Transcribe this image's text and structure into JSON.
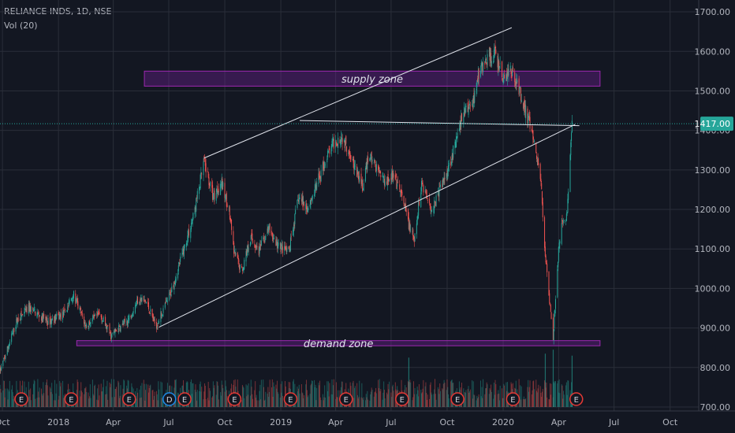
{
  "header": {
    "symbol_line": "RELIANCE INDS, 1D, NSE",
    "volume_line": "Vol (20)"
  },
  "colors": {
    "background": "#131722",
    "grid": "#2a2e39",
    "up": "#26a69a",
    "down": "#ef5350",
    "zone_border": "#9c27b0",
    "zone_fill": "#7b1fa2",
    "trendline": "#e0e3eb",
    "price_line": "#26a69a",
    "axis_text": "#b2b5be",
    "price_tag_bg": "#26a69a",
    "marker_red": "#e53935",
    "marker_blue": "#1e88e5"
  },
  "chart_data": {
    "type": "candlestick",
    "title": "RELIANCE INDS, 1D, NSE",
    "indicator": "Vol (20)",
    "x_ticks": [
      "Oct",
      "2018",
      "Apr",
      "Jul",
      "Oct",
      "2019",
      "Apr",
      "Jul",
      "Oct",
      "2020",
      "Apr",
      "Jul",
      "Oct"
    ],
    "x_tick_dates": [
      "2017-10-01",
      "2018-01-01",
      "2018-04-01",
      "2018-07-01",
      "2018-10-01",
      "2019-01-01",
      "2019-04-01",
      "2019-07-01",
      "2019-10-01",
      "2020-01-01",
      "2020-04-01",
      "2020-07-01",
      "2020-10-01"
    ],
    "y_ticks": [
      "1700.00",
      "1600.00",
      "1500.00",
      "1400.00",
      "1300.00",
      "1200.00",
      "1100.00",
      "1000.00",
      "900.00",
      "800.00",
      "700.00"
    ],
    "y_range": [
      690,
      1730
    ],
    "x_range": [
      "2017-09-27",
      "2020-11-17"
    ],
    "current_price": {
      "value": 1417,
      "label": "1417.00"
    },
    "price_path": [
      [
        "2017-09-27",
        790
      ],
      [
        "2017-10-25",
        920
      ],
      [
        "2017-11-15",
        950
      ],
      [
        "2017-12-15",
        915
      ],
      [
        "2018-01-10",
        935
      ],
      [
        "2018-01-25",
        985
      ],
      [
        "2018-02-15",
        905
      ],
      [
        "2018-03-10",
        935
      ],
      [
        "2018-03-28",
        880
      ],
      [
        "2018-04-25",
        920
      ],
      [
        "2018-05-12",
        975
      ],
      [
        "2018-05-25",
        965
      ],
      [
        "2018-06-10",
        905
      ],
      [
        "2018-07-01",
        975
      ],
      [
        "2018-07-20",
        1070
      ],
      [
        "2018-08-10",
        1180
      ],
      [
        "2018-08-28",
        1320
      ],
      [
        "2018-09-12",
        1230
      ],
      [
        "2018-09-25",
        1270
      ],
      [
        "2018-10-08",
        1200
      ],
      [
        "2018-10-16",
        1090
      ],
      [
        "2018-10-29",
        1045
      ],
      [
        "2018-11-12",
        1130
      ],
      [
        "2018-11-26",
        1095
      ],
      [
        "2018-12-12",
        1150
      ],
      [
        "2018-12-26",
        1110
      ],
      [
        "2019-01-14",
        1090
      ],
      [
        "2019-01-30",
        1230
      ],
      [
        "2019-02-14",
        1205
      ],
      [
        "2019-02-25",
        1245
      ],
      [
        "2019-03-14",
        1320
      ],
      [
        "2019-03-27",
        1365
      ],
      [
        "2019-04-10",
        1385
      ],
      [
        "2019-04-25",
        1345
      ],
      [
        "2019-05-03",
        1300
      ],
      [
        "2019-05-16",
        1255
      ],
      [
        "2019-05-25",
        1340
      ],
      [
        "2019-06-08",
        1305
      ],
      [
        "2019-06-20",
        1275
      ],
      [
        "2019-07-03",
        1285
      ],
      [
        "2019-07-16",
        1245
      ],
      [
        "2019-07-28",
        1175
      ],
      [
        "2019-08-08",
        1115
      ],
      [
        "2019-08-20",
        1270
      ],
      [
        "2019-09-06",
        1200
      ],
      [
        "2019-09-16",
        1240
      ],
      [
        "2019-09-27",
        1280
      ],
      [
        "2019-10-14",
        1360
      ],
      [
        "2019-10-28",
        1445
      ],
      [
        "2019-11-12",
        1470
      ],
      [
        "2019-11-22",
        1545
      ],
      [
        "2019-12-05",
        1580
      ],
      [
        "2019-12-18",
        1595
      ],
      [
        "2020-01-01",
        1530
      ],
      [
        "2020-01-13",
        1555
      ],
      [
        "2020-01-26",
        1510
      ],
      [
        "2020-02-05",
        1460
      ],
      [
        "2020-02-18",
        1385
      ],
      [
        "2020-03-02",
        1290
      ],
      [
        "2020-03-09",
        1110
      ],
      [
        "2020-03-16",
        990
      ],
      [
        "2020-03-23",
        880
      ],
      [
        "2020-03-31",
        1080
      ],
      [
        "2020-04-07",
        1170
      ],
      [
        "2020-04-15",
        1190
      ],
      [
        "2020-04-23",
        1415
      ]
    ],
    "volume_spikes": [
      [
        "2019-07-30",
        825
      ],
      [
        "2020-03-10",
        835
      ],
      [
        "2020-03-23",
        845
      ],
      [
        "2020-04-23",
        830
      ]
    ],
    "event_markers": [
      {
        "date": "2017-11-01",
        "label": "E",
        "kind": "earnings"
      },
      {
        "date": "2018-01-22",
        "label": "E",
        "kind": "earnings"
      },
      {
        "date": "2018-04-27",
        "label": "E",
        "kind": "earnings"
      },
      {
        "date": "2018-07-02",
        "label": "D",
        "kind": "dividend"
      },
      {
        "date": "2018-07-27",
        "label": "E",
        "kind": "earnings"
      },
      {
        "date": "2018-10-17",
        "label": "E",
        "kind": "earnings"
      },
      {
        "date": "2019-01-17",
        "label": "E",
        "kind": "earnings"
      },
      {
        "date": "2019-04-18",
        "label": "E",
        "kind": "earnings"
      },
      {
        "date": "2019-07-19",
        "label": "E",
        "kind": "earnings"
      },
      {
        "date": "2019-10-18",
        "label": "E",
        "kind": "earnings"
      },
      {
        "date": "2020-01-17",
        "label": "E",
        "kind": "earnings"
      },
      {
        "date": "2020-04-30",
        "label": "E",
        "kind": "earnings"
      }
    ],
    "zones": [
      {
        "name": "supply zone",
        "from": "2018-05-22",
        "to": "2020-06-08",
        "low": 1512,
        "high": 1550
      },
      {
        "name": "demand zone",
        "from": "2018-01-31",
        "to": "2020-06-08",
        "low": 855,
        "high": 868
      }
    ],
    "trendlines": [
      {
        "from": [
          "2018-08-28",
          1330
        ],
        "to": [
          "2020-01-15",
          1660
        ]
      },
      {
        "from": [
          "2018-06-15",
          902
        ],
        "to": [
          "2020-04-28",
          1415
        ]
      },
      {
        "from": [
          "2019-02-01",
          1425
        ],
        "to": [
          "2020-05-05",
          1412
        ]
      }
    ]
  }
}
